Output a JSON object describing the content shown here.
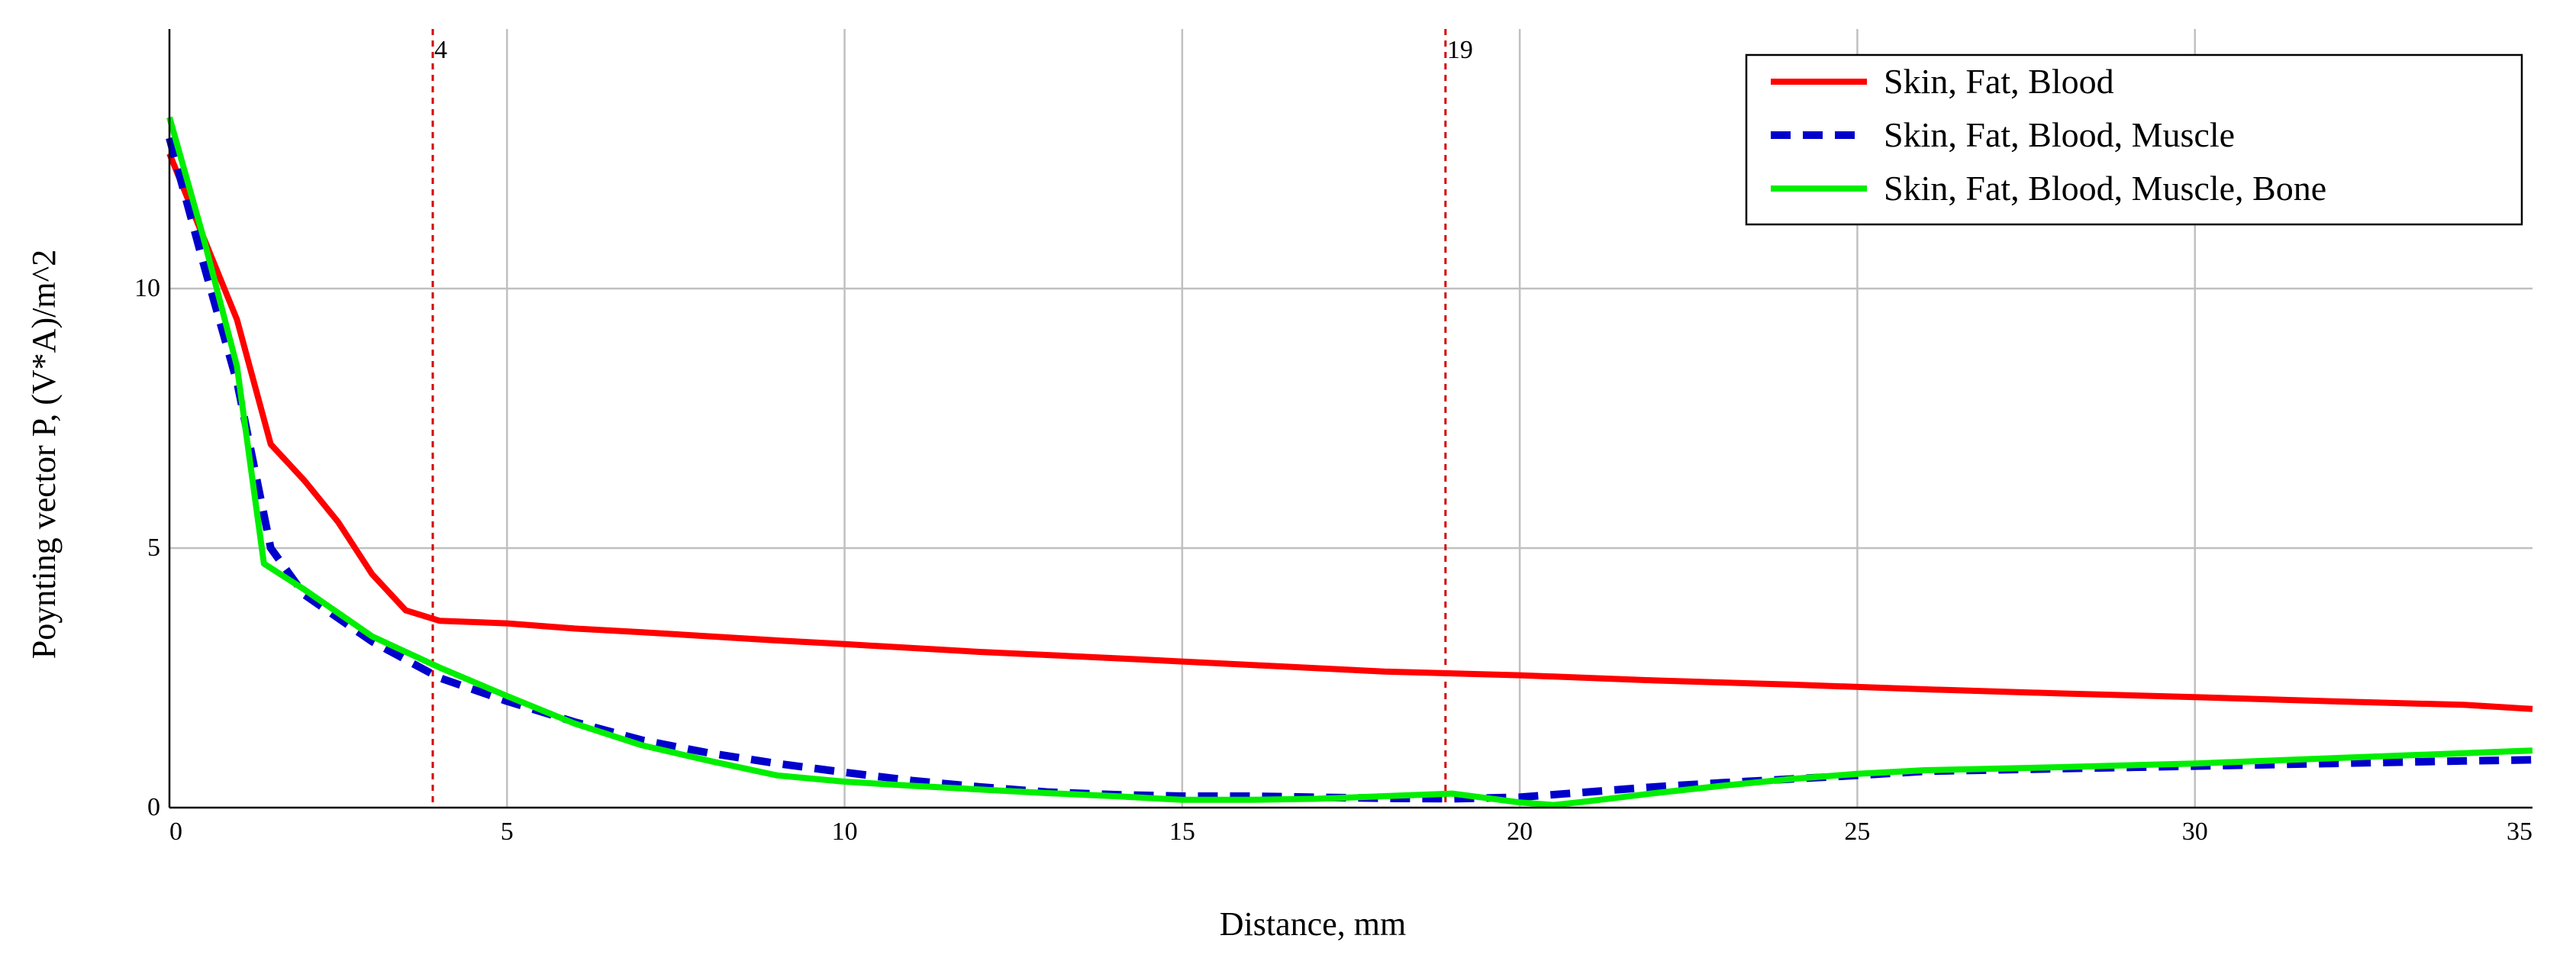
{
  "chart_data": {
    "type": "line",
    "xlabel": "Distance, mm",
    "ylabel": "Poynting vector P, (V*A)/m^2",
    "xlim": [
      0,
      35
    ],
    "ylim": [
      0,
      15
    ],
    "xticks": [
      0,
      5,
      10,
      15,
      20,
      25,
      30,
      35
    ],
    "yticks": [
      0,
      5,
      10
    ],
    "grid": true,
    "legend_position": "top-right",
    "vertical_markers": [
      {
        "x": 3.9,
        "label": "4",
        "color": "#d40000"
      },
      {
        "x": 18.9,
        "label": "19",
        "color": "#d40000"
      }
    ],
    "series": [
      {
        "name": "Skin, Fat, Blood",
        "color": "#ff0000",
        "style": "solid",
        "x": [
          0,
          0.5,
          1,
          1.5,
          2,
          2.5,
          3,
          3.5,
          4,
          5,
          6,
          7,
          8,
          9,
          10,
          12,
          14,
          16,
          18,
          20,
          22,
          24,
          26,
          28,
          30,
          32,
          34,
          35
        ],
        "y": [
          12.6,
          11.0,
          9.4,
          7.0,
          6.3,
          5.5,
          4.5,
          3.8,
          3.6,
          3.55,
          3.45,
          3.38,
          3.3,
          3.22,
          3.15,
          3.0,
          2.88,
          2.75,
          2.62,
          2.55,
          2.45,
          2.37,
          2.28,
          2.2,
          2.13,
          2.05,
          1.98,
          1.9
        ]
      },
      {
        "name": "Skin, Fat, Blood, Muscle",
        "color": "#0000cc",
        "style": "dashed",
        "x": [
          0,
          0.5,
          1,
          1.5,
          2,
          3,
          4,
          5,
          6,
          7,
          8,
          9,
          10,
          11,
          12,
          13,
          14,
          15,
          16,
          17,
          18,
          19,
          20,
          21,
          22,
          23,
          24,
          25,
          26,
          28,
          30,
          32,
          34,
          35
        ],
        "y": [
          12.9,
          10.5,
          8.2,
          5.0,
          4.1,
          3.2,
          2.5,
          2.05,
          1.65,
          1.3,
          1.05,
          0.85,
          0.68,
          0.52,
          0.4,
          0.3,
          0.25,
          0.22,
          0.22,
          0.2,
          0.18,
          0.17,
          0.2,
          0.3,
          0.4,
          0.48,
          0.55,
          0.62,
          0.7,
          0.75,
          0.8,
          0.85,
          0.9,
          0.92
        ]
      },
      {
        "name": "Skin, Fat, Blood, Muscle, Bone",
        "color": "#00ee00",
        "style": "solid",
        "x": [
          0,
          0.5,
          1,
          1.4,
          2,
          3,
          4,
          5,
          6,
          7,
          8,
          9,
          10,
          11,
          12,
          13,
          14,
          15,
          16,
          17,
          18,
          19,
          20,
          20.5,
          21,
          22,
          23,
          24,
          25,
          26,
          28,
          30,
          32,
          34,
          35
        ],
        "y": [
          13.3,
          11.0,
          8.5,
          4.7,
          4.2,
          3.3,
          2.7,
          2.15,
          1.62,
          1.2,
          0.9,
          0.62,
          0.5,
          0.42,
          0.35,
          0.28,
          0.22,
          0.15,
          0.15,
          0.17,
          0.22,
          0.27,
          0.1,
          0.05,
          0.12,
          0.28,
          0.42,
          0.55,
          0.65,
          0.72,
          0.78,
          0.85,
          0.95,
          1.05,
          1.1
        ]
      }
    ]
  }
}
